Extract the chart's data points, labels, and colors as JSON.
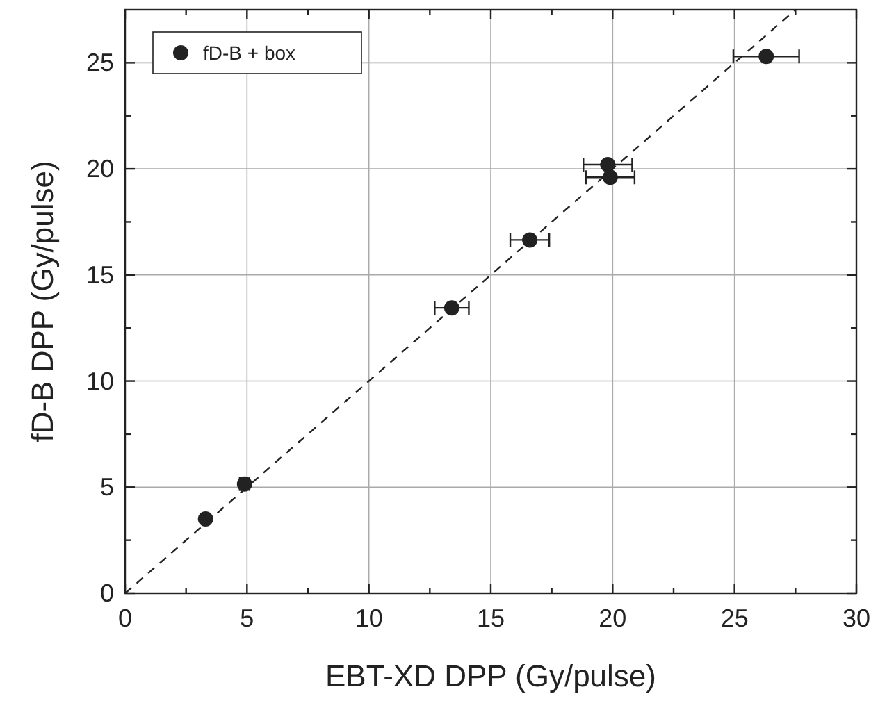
{
  "chart_data": {
    "type": "scatter",
    "xlabel": "EBT-XD DPP (Gy/pulse)",
    "ylabel": "fD-B DPP (Gy/pulse)",
    "xlim": [
      0,
      30
    ],
    "ylim": [
      0,
      27.5
    ],
    "xticks": [
      0,
      5,
      10,
      15,
      20,
      25,
      30
    ],
    "yticks": [
      0,
      5,
      10,
      15,
      20,
      25
    ],
    "grid": true,
    "legend": "top left",
    "marker": "circle",
    "series": [
      {
        "name": "fD-B + box",
        "color": "#222222",
        "x": [
          3.3,
          4.9,
          13.4,
          16.6,
          19.8,
          19.9,
          26.3
        ],
        "values": [
          3.5,
          5.15,
          13.45,
          16.65,
          20.2,
          19.6,
          25.3
        ],
        "xerrors": [
          0.1,
          0.2,
          0.7,
          0.8,
          1.0,
          1.0,
          1.35
        ]
      },
      {
        "type": "line",
        "color": "#222222",
        "line_style": "dashed",
        "marker": "none",
        "x": [
          0,
          27.5
        ],
        "values": [
          0,
          27.5
        ]
      }
    ]
  }
}
